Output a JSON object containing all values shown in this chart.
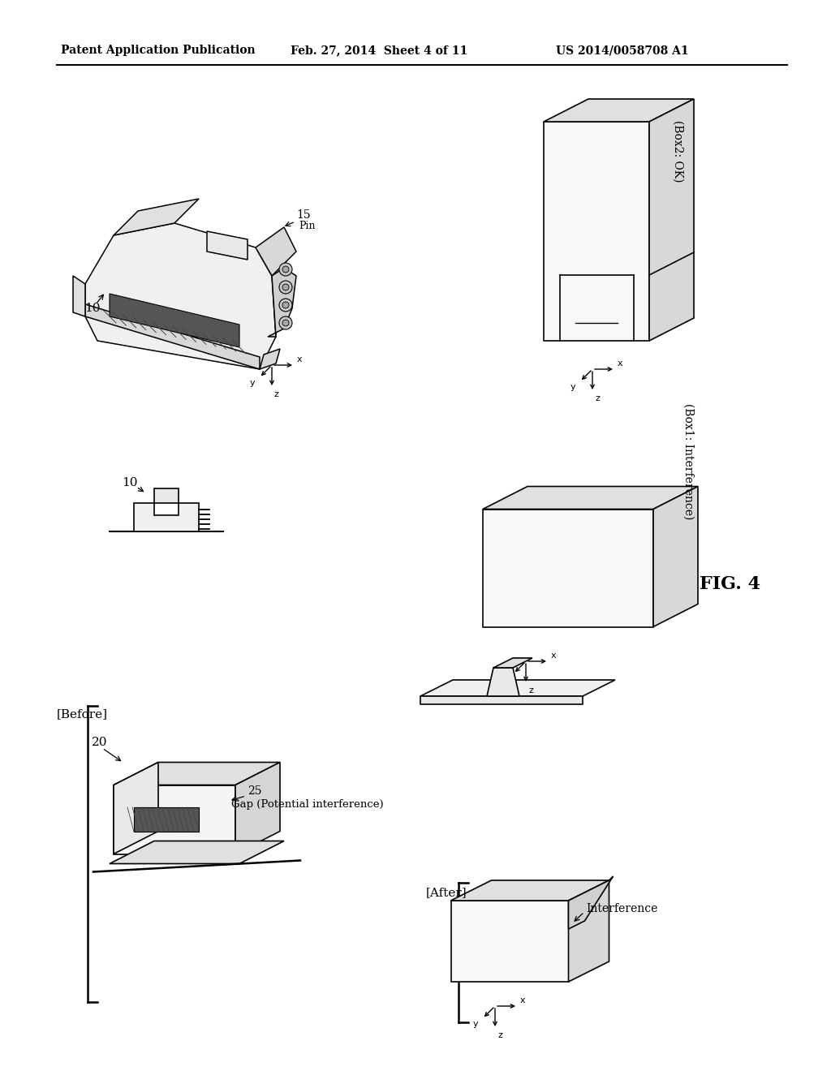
{
  "bg_color": "#ffffff",
  "header_left": "Patent Application Publication",
  "header_center": "Feb. 27, 2014  Sheet 4 of 11",
  "header_right": "US 2014/0058708 A1",
  "fig_label": "FIG. 4",
  "label_before": "[Before]",
  "label_after": "[After]",
  "label_box2ok": "(Box2: OK)",
  "label_box1interference": "(Box1: Interference)",
  "label_gap": "Gap (Potential interference)",
  "label_interference": "Interference",
  "label_10_top": "10",
  "label_15": "15",
  "label_15_pin": "Pin",
  "label_10_bottom": "10",
  "label_20": "20",
  "label_25": "25"
}
